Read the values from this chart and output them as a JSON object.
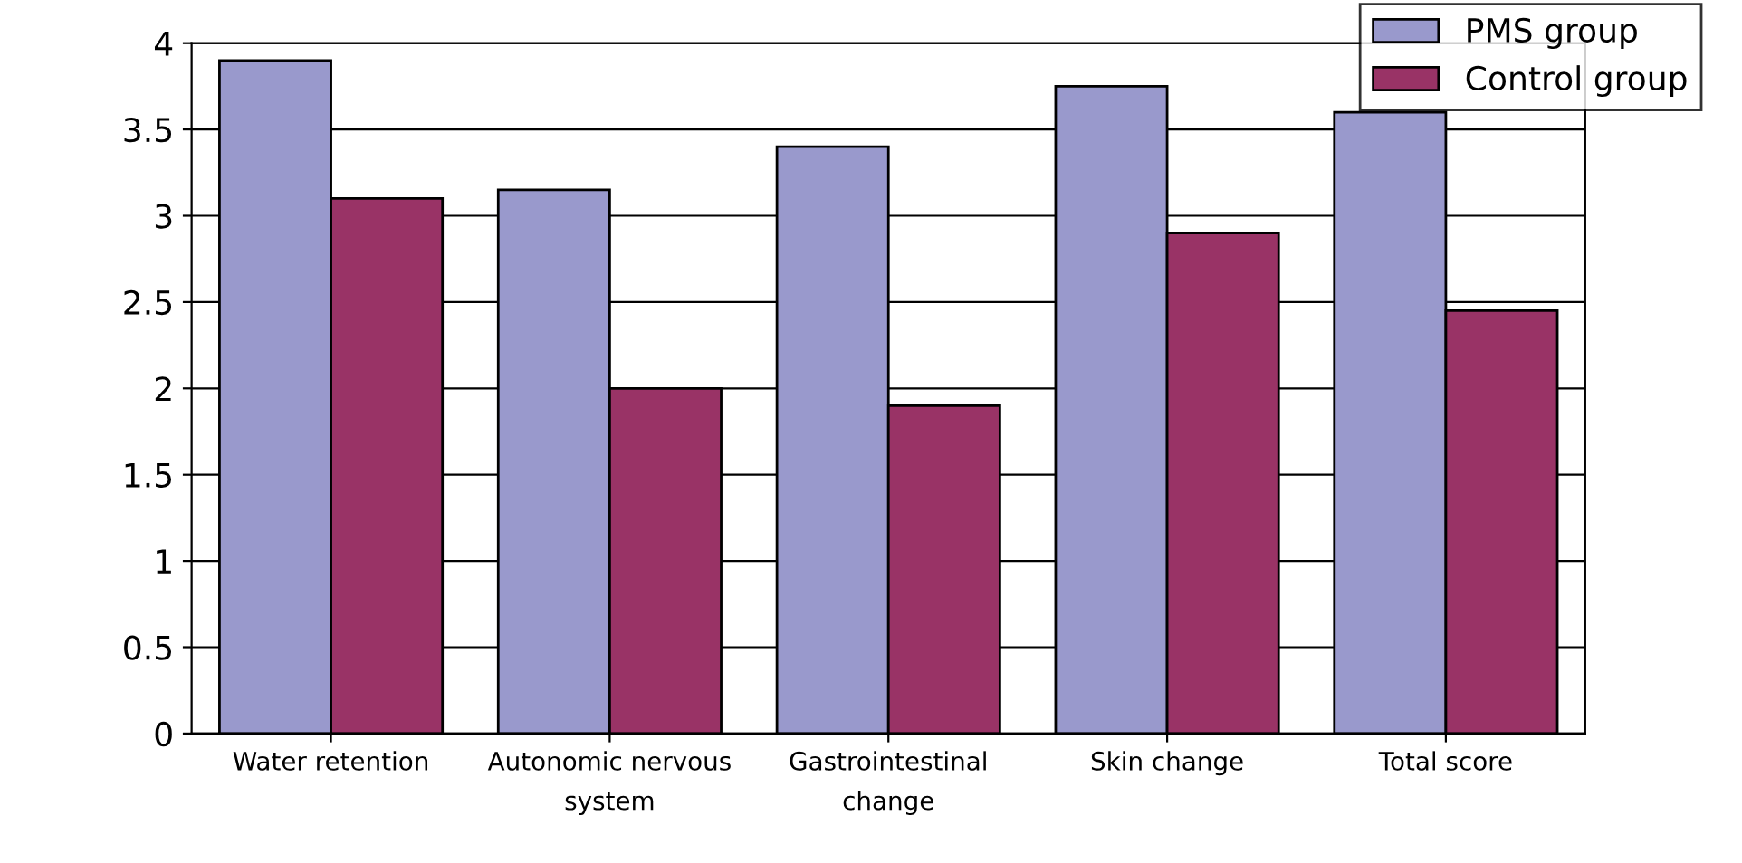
{
  "chart_data": {
    "type": "bar",
    "categories": [
      "Water retention",
      "Autonomic nervous system",
      "Gastrointestinal change",
      "Skin change",
      "Total score"
    ],
    "series": [
      {
        "name": "PMS group",
        "color": "#9999cc",
        "values": [
          3.9,
          3.15,
          3.4,
          3.75,
          3.6
        ]
      },
      {
        "name": "Control group",
        "color": "#993366",
        "values": [
          3.1,
          2.0,
          1.9,
          2.9,
          2.45
        ]
      }
    ],
    "ylim": [
      0,
      4
    ],
    "yticks": [
      0,
      0.5,
      1,
      1.5,
      2,
      2.5,
      3,
      3.5,
      4
    ],
    "grid": "y",
    "legend": "top right"
  }
}
